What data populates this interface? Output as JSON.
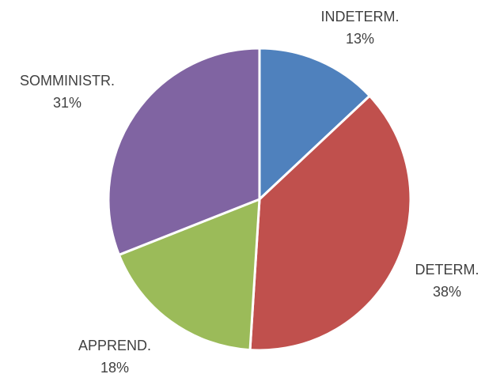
{
  "chart_data": {
    "type": "pie",
    "categories": [
      "INDETERM.",
      "DETERM.",
      "APPREND.",
      "SOMMINISTR."
    ],
    "values": [
      13,
      38,
      18,
      31
    ],
    "value_labels": [
      "13%",
      "38%",
      "18%",
      "31%"
    ],
    "colors": [
      "#4f81bd",
      "#c0504d",
      "#9bbb59",
      "#8064a2"
    ]
  }
}
